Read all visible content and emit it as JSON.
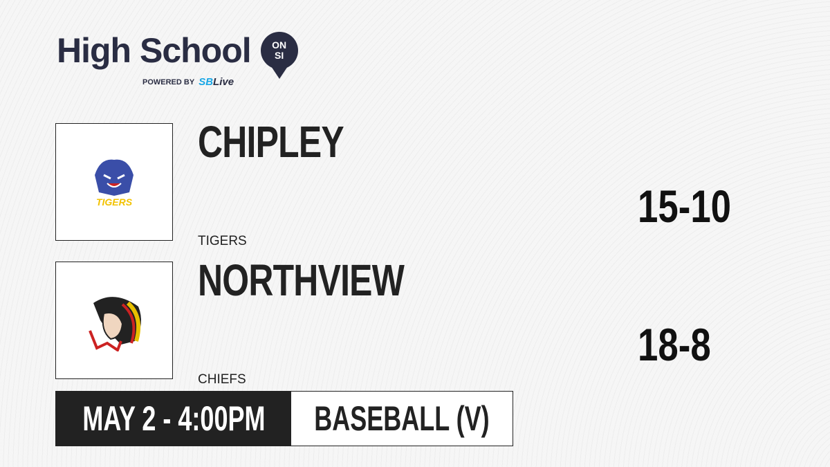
{
  "brand": {
    "title": "High School",
    "badge_top": "ON",
    "badge_bottom": "SI",
    "powered_by": "POWERED BY",
    "partner_a": "SB",
    "partner_b": "Live"
  },
  "teams": [
    {
      "name": "CHIPLEY",
      "mascot": "TIGERS",
      "record": "15-10",
      "logo_icon": "tiger-logo-icon",
      "logo_text": "TIGERS"
    },
    {
      "name": "NORTHVIEW",
      "mascot": "CHIEFS",
      "record": "18-8",
      "logo_icon": "chief-logo-icon"
    }
  ],
  "game": {
    "datetime": "MAY 2 - 4:00PM",
    "sport": "BASEBALL (V)"
  },
  "colors": {
    "brand": "#2a2d43",
    "partner": "#1aa7e6",
    "dark": "#222222"
  }
}
